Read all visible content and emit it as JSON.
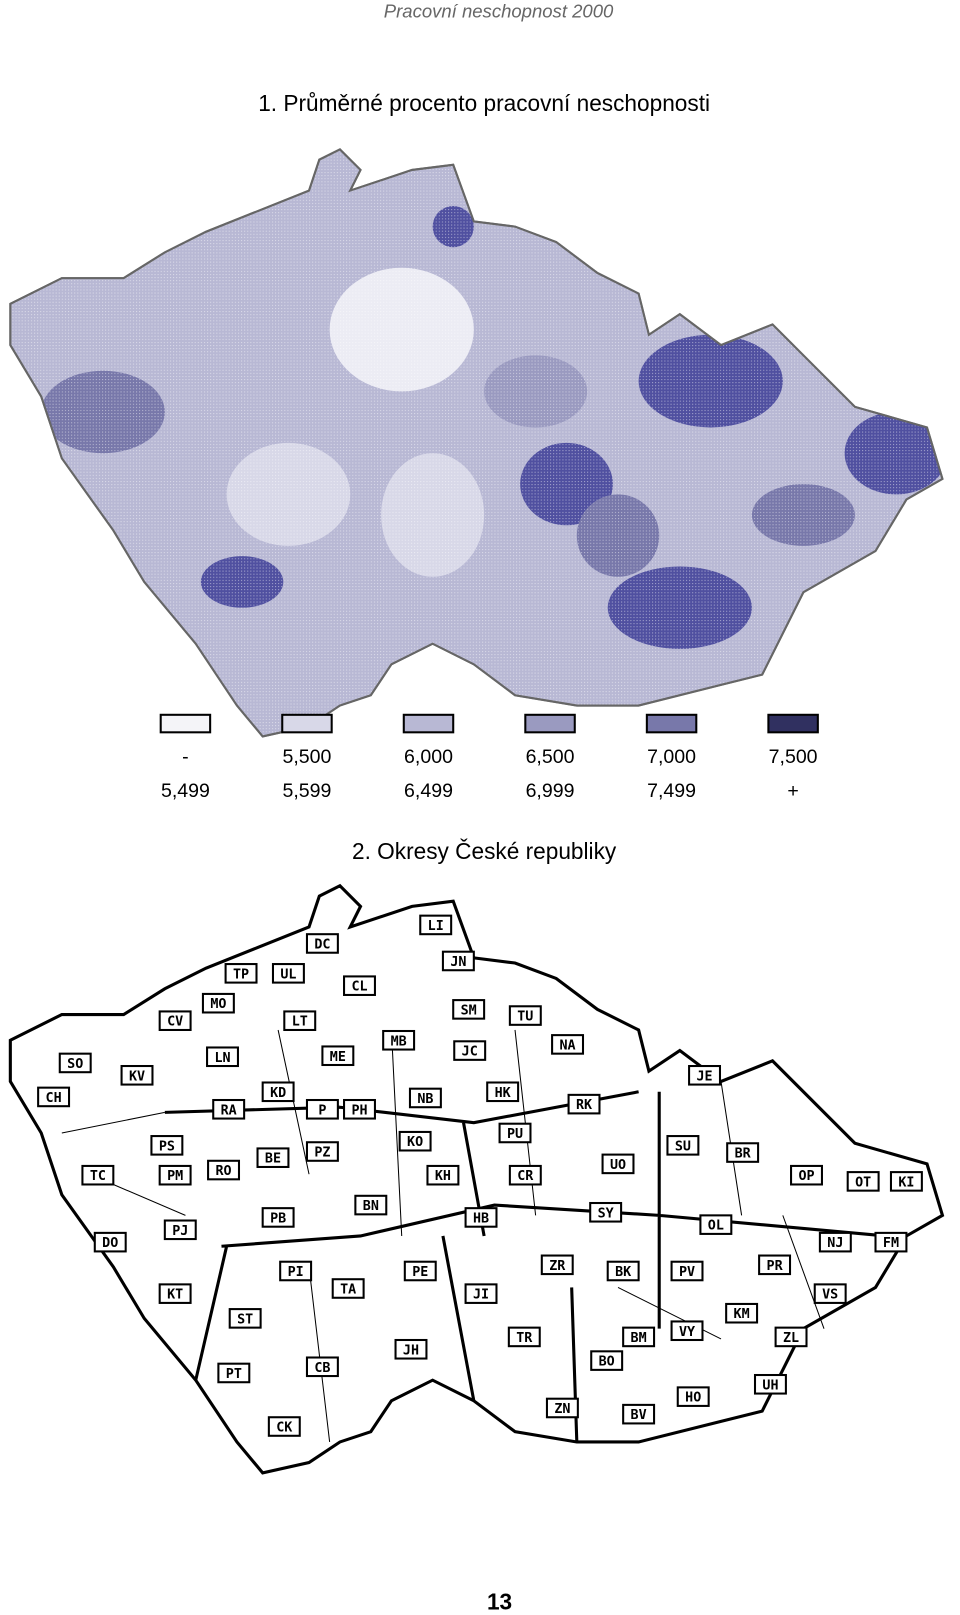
{
  "header": "Pracovní neschopnost 2000",
  "map1": {
    "title": "1. Průměrné procento pracovní neschopnosti",
    "legend": [
      {
        "from": "-",
        "to": "5,499"
      },
      {
        "from": "5,500",
        "to": "5,599"
      },
      {
        "from": "6,000",
        "to": "6,499"
      },
      {
        "from": "6,500",
        "to": "6,999"
      },
      {
        "from": "7,000",
        "to": "7,499"
      },
      {
        "from": "7,500",
        "to": "+"
      }
    ]
  },
  "map2": {
    "title": "2. Okresy České republiky",
    "districts": [
      "LI",
      "JN",
      "DC",
      "TP",
      "UL",
      "CL",
      "MO",
      "CV",
      "LT",
      "SM",
      "TU",
      "NA",
      "SO",
      "KV",
      "MB",
      "ME",
      "JC",
      "LN",
      "CH",
      "KD",
      "JE",
      "P",
      "PH",
      "NB",
      "HK",
      "RK",
      "RA",
      "PS",
      "PU",
      "KO",
      "SU",
      "BR",
      "PZ",
      "BE",
      "RO",
      "UO",
      "TC",
      "PM",
      "KH",
      "CR",
      "OP",
      "OT",
      "KI",
      "BN",
      "SY",
      "PB",
      "HB",
      "OL",
      "DO",
      "PJ",
      "NJ",
      "FM",
      "PI",
      "ZR",
      "BK",
      "PE",
      "PV",
      "PR",
      "TA",
      "JI",
      "VS",
      "KT",
      "KM",
      "ST",
      "VY",
      "BM",
      "TR",
      "ZL",
      "JH",
      "BO",
      "CB",
      "PT",
      "UH",
      "HO",
      "ZN",
      "BV",
      "CK"
    ]
  },
  "page_number": "13"
}
